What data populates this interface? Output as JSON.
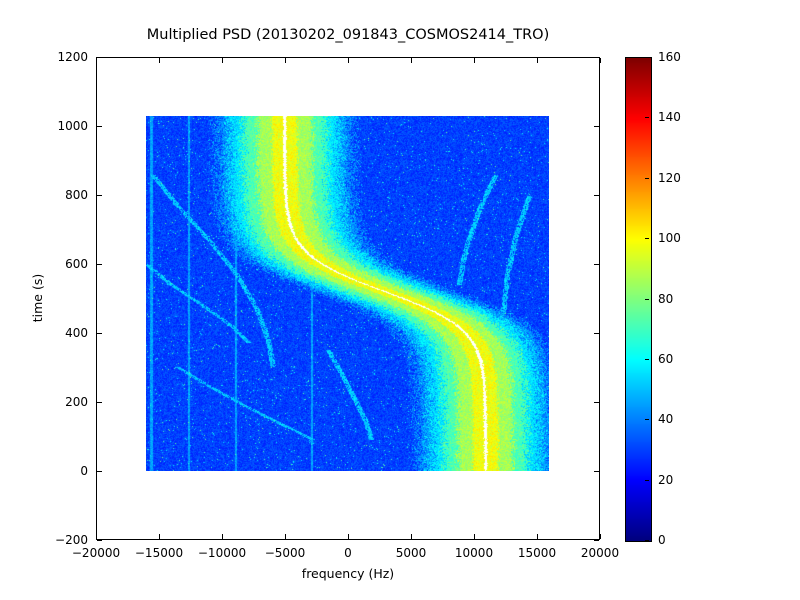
{
  "chart_data": {
    "type": "heatmap",
    "title": "Multiplied PSD (20130202_091843_COSMOS2414_TRO)",
    "xlabel": "frequency (Hz)",
    "ylabel": "time (s)",
    "xlim": [
      -20000,
      20000
    ],
    "ylim": [
      -200,
      1200
    ],
    "x_ticks": [
      -20000,
      -15000,
      -10000,
      -5000,
      0,
      5000,
      10000,
      15000,
      20000
    ],
    "y_ticks": [
      -200,
      0,
      200,
      400,
      600,
      800,
      1000,
      1200
    ],
    "grid": false,
    "colormap": "jet",
    "colorbar": {
      "vmin": 0,
      "vmax": 160,
      "ticks": [
        0,
        20,
        40,
        60,
        80,
        100,
        120,
        140,
        160
      ],
      "position": "right"
    },
    "extent": {
      "frequency": [
        -16000,
        16000
      ],
      "time": [
        0,
        1030
      ]
    },
    "background_value": 30,
    "noise_amplitude": 12,
    "doppler_curve": {
      "offset_hz": 3000,
      "amplitude_hz": 8000,
      "t0_s": 520,
      "tau_s": 110,
      "centerline_color": "#ffffff",
      "bands": [
        {
          "halfwidth_hz": 1000,
          "value": 98
        },
        {
          "halfwidth_hz": 2200,
          "value": 86
        },
        {
          "halfwidth_hz": 3300,
          "value": 72
        },
        {
          "halfwidth_hz": 4400,
          "value": 56
        },
        {
          "halfwidth_hz": 5400,
          "value": 43
        }
      ]
    },
    "interference_lines": {
      "frequencies_hz": [
        -15600,
        -12600,
        -8900,
        -2800
      ],
      "value": 46
    },
    "faint_traces": {
      "value": 52,
      "halfwidth_hz": 210,
      "tracks": [
        {
          "points": [
            [
              -5900,
              300
            ],
            [
              -6300,
              380
            ],
            [
              -7200,
              470
            ],
            [
              -8800,
              570
            ],
            [
              -11000,
              670
            ],
            [
              -13500,
              770
            ],
            [
              -15500,
              860
            ]
          ]
        },
        {
          "points": [
            [
              -7800,
              370
            ],
            [
              -9200,
              420
            ],
            [
              -11500,
              480
            ],
            [
              -14000,
              540
            ],
            [
              -16000,
              600
            ]
          ]
        },
        {
          "points": [
            [
              -2500,
              85
            ],
            [
              -5000,
              130
            ],
            [
              -8000,
              185
            ],
            [
              -11000,
              245
            ],
            [
              -13500,
              300
            ]
          ]
        },
        {
          "points": [
            [
              8900,
              540
            ],
            [
              9400,
              640
            ],
            [
              10400,
              750
            ],
            [
              11800,
              860
            ]
          ]
        },
        {
          "points": [
            [
              12400,
              450
            ],
            [
              12700,
              560
            ],
            [
              13400,
              680
            ],
            [
              14500,
              800
            ]
          ]
        },
        {
          "points": [
            [
              1900,
              90
            ],
            [
              1500,
              140
            ],
            [
              700,
              200
            ],
            [
              -300,
              270
            ],
            [
              -1500,
              350
            ]
          ]
        }
      ]
    }
  }
}
